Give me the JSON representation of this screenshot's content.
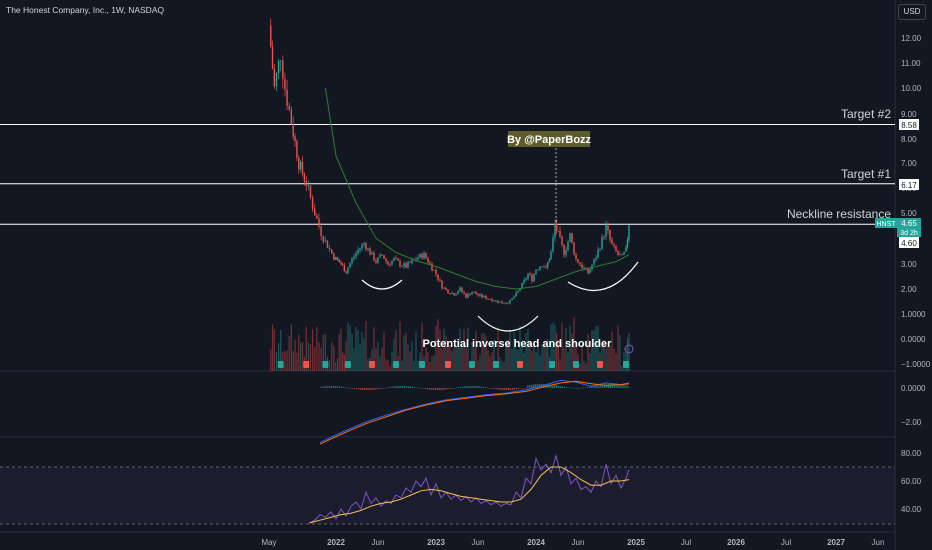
{
  "header": {
    "title": "The Honest Company, Inc., 1W, NASDAQ",
    "currency": "USD"
  },
  "annotations": {
    "author": "By @PaperBozz",
    "pattern": "Potential inverse head and shoulder",
    "target2": "Target #2",
    "target1": "Target #1",
    "neckline": "Neckline resistance"
  },
  "price_labels": {
    "target2": "8.58",
    "target1": "6.17",
    "ticker": "HNST",
    "last": "4.65",
    "countdown": "3d 2h",
    "neckline": "4.60"
  },
  "colors": {
    "background": "#131722",
    "up": "#26a69a",
    "down": "#ef5350",
    "ma": "#2e7d32",
    "macd": "#2962ff",
    "signal": "#ff6d00",
    "rsi": "#7e57c2",
    "rsi_ma": "#f5c24a",
    "annotation_box": "#5c5c2e"
  },
  "chart_data": {
    "type": "candlestick",
    "price_axis": {
      "ticks": [
        "12.00",
        "11.00",
        "10.00",
        "9.00",
        "8.00",
        "7.00",
        "6.00",
        "5.00",
        "3.00",
        "2.00",
        "1.0000",
        "0.0000",
        "−1.0000"
      ],
      "values": [
        12,
        11,
        10,
        9,
        8,
        7,
        6,
        5,
        3,
        2,
        1,
        0,
        -1
      ],
      "scale": "log"
    },
    "time_axis": [
      "May",
      "2022",
      "Jun",
      "2023",
      "Jun",
      "2024",
      "Jun",
      "2025",
      "Jul",
      "2026",
      "Jul",
      "2027",
      "Jun"
    ],
    "horizontal_levels": [
      {
        "name": "Target #2",
        "value": 8.58
      },
      {
        "name": "Target #1",
        "value": 6.17
      },
      {
        "name": "Neckline resistance",
        "value": 4.6
      }
    ],
    "price_series": [
      [
        2021.37,
        12.5
      ],
      [
        2021.42,
        10.0
      ],
      [
        2021.48,
        11.4
      ],
      [
        2021.52,
        10.0
      ],
      [
        2021.58,
        8.7
      ],
      [
        2021.65,
        7.0
      ],
      [
        2021.72,
        6.2
      ],
      [
        2021.8,
        5.0
      ],
      [
        2021.86,
        4.3
      ],
      [
        2021.92,
        3.8
      ],
      [
        2021.98,
        3.3
      ],
      [
        2022.05,
        3.0
      ],
      [
        2022.1,
        2.7
      ],
      [
        2022.16,
        3.2
      ],
      [
        2022.22,
        3.6
      ],
      [
        2022.28,
        3.9
      ],
      [
        2022.34,
        3.5
      ],
      [
        2022.4,
        3.1
      ],
      [
        2022.46,
        3.4
      ],
      [
        2022.52,
        3.0
      ],
      [
        2022.58,
        3.2
      ],
      [
        2022.64,
        3.0
      ],
      [
        2022.7,
        2.9
      ],
      [
        2022.76,
        3.1
      ],
      [
        2022.82,
        3.3
      ],
      [
        2022.88,
        3.4
      ],
      [
        2022.94,
        3.0
      ],
      [
        2023.0,
        2.6
      ],
      [
        2023.06,
        2.1
      ],
      [
        2023.12,
        1.9
      ],
      [
        2023.18,
        1.8
      ],
      [
        2023.24,
        2.0
      ],
      [
        2023.3,
        1.7
      ],
      [
        2023.36,
        1.9
      ],
      [
        2023.42,
        1.75
      ],
      [
        2023.5,
        1.65
      ],
      [
        2023.58,
        1.55
      ],
      [
        2023.66,
        1.45
      ],
      [
        2023.74,
        1.5
      ],
      [
        2023.82,
        1.9
      ],
      [
        2023.88,
        2.3
      ],
      [
        2023.92,
        2.6
      ],
      [
        2023.96,
        2.4
      ],
      [
        2024.0,
        2.8
      ],
      [
        2024.06,
        3.0
      ],
      [
        2024.1,
        2.8
      ],
      [
        2024.15,
        3.5
      ],
      [
        2024.19,
        4.6
      ],
      [
        2024.24,
        4.0
      ],
      [
        2024.28,
        3.5
      ],
      [
        2024.34,
        4.2
      ],
      [
        2024.4,
        3.2
      ],
      [
        2024.46,
        2.9
      ],
      [
        2024.52,
        2.65
      ],
      [
        2024.58,
        3.1
      ],
      [
        2024.64,
        3.8
      ],
      [
        2024.7,
        4.5
      ],
      [
        2024.76,
        3.8
      ],
      [
        2024.82,
        3.4
      ],
      [
        2024.86,
        3.3
      ],
      [
        2024.9,
        3.6
      ],
      [
        2024.93,
        4.65
      ]
    ],
    "moving_average": [
      [
        2021.9,
        10.0
      ],
      [
        2022.0,
        7.3
      ],
      [
        2022.2,
        5.4
      ],
      [
        2022.4,
        4.1
      ],
      [
        2022.6,
        3.5
      ],
      [
        2022.8,
        3.15
      ],
      [
        2023.0,
        2.9
      ],
      [
        2023.2,
        2.6
      ],
      [
        2023.4,
        2.3
      ],
      [
        2023.6,
        2.1
      ],
      [
        2023.8,
        2.0
      ],
      [
        2024.0,
        2.1
      ],
      [
        2024.2,
        2.4
      ],
      [
        2024.4,
        2.7
      ],
      [
        2024.6,
        2.9
      ],
      [
        2024.8,
        3.1
      ],
      [
        2024.93,
        3.4
      ]
    ],
    "macd_axis": {
      "ticks": [
        "0.0000",
        "−2.00"
      ],
      "values": [
        0,
        -2
      ]
    },
    "macd": [
      [
        2021.85,
        -3.2
      ],
      [
        2021.95,
        -2.9
      ],
      [
        2022.1,
        -2.5
      ],
      [
        2022.3,
        -2.0
      ],
      [
        2022.5,
        -1.6
      ],
      [
        2022.7,
        -1.25
      ],
      [
        2022.9,
        -0.95
      ],
      [
        2023.1,
        -0.7
      ],
      [
        2023.3,
        -0.55
      ],
      [
        2023.5,
        -0.4
      ],
      [
        2023.7,
        -0.3
      ],
      [
        2023.9,
        -0.1
      ],
      [
        2024.1,
        0.2
      ],
      [
        2024.25,
        0.45
      ],
      [
        2024.4,
        0.35
      ],
      [
        2024.55,
        0.1
      ],
      [
        2024.7,
        0.3
      ],
      [
        2024.85,
        0.2
      ],
      [
        2024.93,
        0.3
      ]
    ],
    "macd_signal": [
      [
        2021.85,
        -3.3
      ],
      [
        2021.95,
        -3.0
      ],
      [
        2022.1,
        -2.6
      ],
      [
        2022.3,
        -2.1
      ],
      [
        2022.5,
        -1.7
      ],
      [
        2022.7,
        -1.3
      ],
      [
        2022.9,
        -1.0
      ],
      [
        2023.1,
        -0.75
      ],
      [
        2023.3,
        -0.6
      ],
      [
        2023.5,
        -0.45
      ],
      [
        2023.7,
        -0.35
      ],
      [
        2023.9,
        -0.2
      ],
      [
        2024.1,
        0.1
      ],
      [
        2024.25,
        0.3
      ],
      [
        2024.4,
        0.4
      ],
      [
        2024.55,
        0.25
      ],
      [
        2024.7,
        0.15
      ],
      [
        2024.85,
        0.2
      ],
      [
        2024.93,
        0.25
      ]
    ],
    "rsi_axis": {
      "ticks": [
        "80.00",
        "60.00",
        "40.00"
      ],
      "values": [
        80,
        60,
        40
      ],
      "overbought": 70,
      "oversold": 30
    },
    "rsi": [
      [
        2021.75,
        30
      ],
      [
        2021.8,
        32
      ],
      [
        2021.85,
        36
      ],
      [
        2021.9,
        34
      ],
      [
        2021.95,
        38
      ],
      [
        2022.0,
        33
      ],
      [
        2022.05,
        40
      ],
      [
        2022.1,
        35
      ],
      [
        2022.15,
        42
      ],
      [
        2022.2,
        45
      ],
      [
        2022.25,
        40
      ],
      [
        2022.3,
        52
      ],
      [
        2022.35,
        44
      ],
      [
        2022.4,
        48
      ],
      [
        2022.45,
        42
      ],
      [
        2022.5,
        46
      ],
      [
        2022.55,
        44
      ],
      [
        2022.6,
        50
      ],
      [
        2022.65,
        48
      ],
      [
        2022.7,
        55
      ],
      [
        2022.75,
        52
      ],
      [
        2022.8,
        60
      ],
      [
        2022.85,
        56
      ],
      [
        2022.9,
        62
      ],
      [
        2022.95,
        50
      ],
      [
        2023.0,
        58
      ],
      [
        2023.05,
        48
      ],
      [
        2023.1,
        52
      ],
      [
        2023.15,
        47
      ],
      [
        2023.2,
        50
      ],
      [
        2023.25,
        46
      ],
      [
        2023.3,
        49
      ],
      [
        2023.35,
        45
      ],
      [
        2023.4,
        48
      ],
      [
        2023.45,
        44
      ],
      [
        2023.5,
        46
      ],
      [
        2023.55,
        43
      ],
      [
        2023.6,
        45
      ],
      [
        2023.65,
        42
      ],
      [
        2023.7,
        44
      ],
      [
        2023.75,
        43
      ],
      [
        2023.8,
        52
      ],
      [
        2023.85,
        48
      ],
      [
        2023.9,
        62
      ],
      [
        2023.95,
        58
      ],
      [
        2024.0,
        76
      ],
      [
        2024.05,
        68
      ],
      [
        2024.1,
        72
      ],
      [
        2024.15,
        66
      ],
      [
        2024.2,
        78
      ],
      [
        2024.25,
        64
      ],
      [
        2024.3,
        70
      ],
      [
        2024.35,
        58
      ],
      [
        2024.4,
        62
      ],
      [
        2024.45,
        54
      ],
      [
        2024.5,
        56
      ],
      [
        2024.55,
        52
      ],
      [
        2024.6,
        60
      ],
      [
        2024.65,
        56
      ],
      [
        2024.7,
        72
      ],
      [
        2024.75,
        58
      ],
      [
        2024.8,
        64
      ],
      [
        2024.85,
        55
      ],
      [
        2024.9,
        62
      ],
      [
        2024.93,
        68
      ]
    ],
    "rsi_ma": [
      [
        2021.75,
        30
      ],
      [
        2021.85,
        32
      ],
      [
        2021.95,
        34
      ],
      [
        2022.05,
        36
      ],
      [
        2022.15,
        37
      ],
      [
        2022.25,
        39
      ],
      [
        2022.35,
        42
      ],
      [
        2022.45,
        44
      ],
      [
        2022.55,
        45
      ],
      [
        2022.65,
        47
      ],
      [
        2022.75,
        50
      ],
      [
        2022.85,
        53
      ],
      [
        2022.95,
        54
      ],
      [
        2023.05,
        53
      ],
      [
        2023.15,
        51
      ],
      [
        2023.25,
        49
      ],
      [
        2023.35,
        48
      ],
      [
        2023.45,
        47
      ],
      [
        2023.55,
        46
      ],
      [
        2023.65,
        45
      ],
      [
        2023.75,
        45
      ],
      [
        2023.85,
        47
      ],
      [
        2023.95,
        54
      ],
      [
        2024.05,
        64
      ],
      [
        2024.15,
        70
      ],
      [
        2024.25,
        70
      ],
      [
        2024.35,
        66
      ],
      [
        2024.45,
        61
      ],
      [
        2024.55,
        57
      ],
      [
        2024.65,
        57
      ],
      [
        2024.75,
        60
      ],
      [
        2024.85,
        60
      ],
      [
        2024.93,
        61
      ]
    ]
  }
}
